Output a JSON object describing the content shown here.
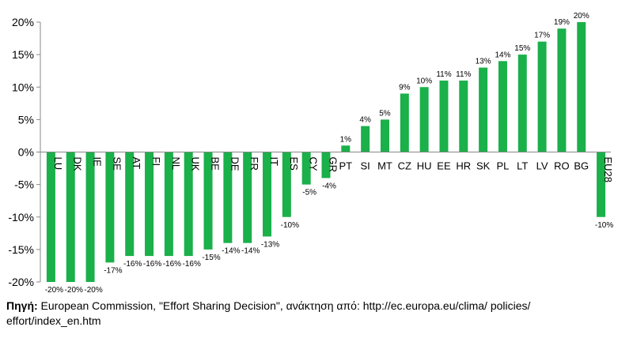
{
  "chart_data": {
    "type": "bar",
    "categories": [
      "LU",
      "DK",
      "IE",
      "SE",
      "AT",
      "FI",
      "NL",
      "UK",
      "BE",
      "DE",
      "FR",
      "IT",
      "ES",
      "CY",
      "GR",
      "PT",
      "SI",
      "MT",
      "CZ",
      "HU",
      "EE",
      "HR",
      "SK",
      "PL",
      "LT",
      "LV",
      "RO",
      "BG",
      "EU28"
    ],
    "values": [
      -20,
      -20,
      -20,
      -17,
      -16,
      -16,
      -16,
      -16,
      -15,
      -14,
      -14,
      -13,
      -10,
      -5,
      -4,
      1,
      4,
      5,
      9,
      10,
      11,
      11,
      13,
      14,
      15,
      17,
      19,
      20,
      -10
    ],
    "data_labels": [
      "-20%",
      "-20%",
      "-20%",
      "-17%",
      "-16%",
      "-16%",
      "-16%",
      "-16%",
      "-15%",
      "-14%",
      "-14%",
      "-13%",
      "-10%",
      "-5%",
      "-4%",
      "1%",
      "4%",
      "5%",
      "9%",
      "10%",
      "11%",
      "11%",
      "13%",
      "14%",
      "15%",
      "17%",
      "19%",
      "20%",
      "-10%"
    ],
    "yticks": [
      20,
      15,
      10,
      5,
      0,
      -5,
      -10,
      -15,
      -20
    ],
    "ytick_labels": [
      "20%",
      "15%",
      "10%",
      "5%",
      "0%",
      "-5%",
      "-10%",
      "-15%",
      "-20%"
    ],
    "ylim": [
      -20,
      20
    ],
    "bar_color": "#1ab04a",
    "grid": false,
    "legend": false
  },
  "source": {
    "label": "Πηγή:",
    "text": " European Commission, \"Effort Sharing Decision\", ανάκτηση από: http://ec.europa.eu/clima/ policies/ effort/index_en.htm"
  }
}
